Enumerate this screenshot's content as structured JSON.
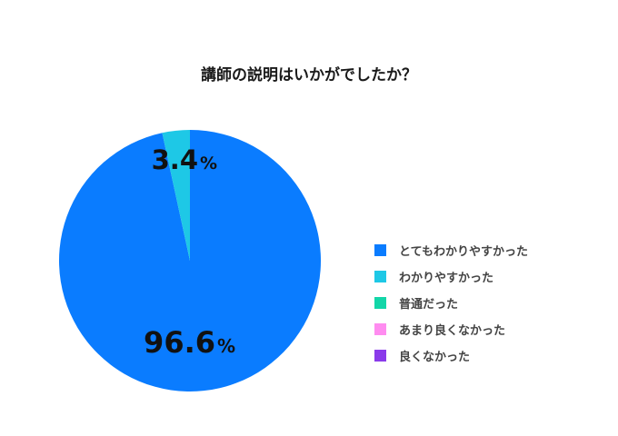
{
  "chart_data": {
    "type": "pie",
    "title": "講師の説明はいかがでしたか？",
    "categories": [
      "とてもわかりやすかった",
      "わかりやすかった",
      "普通だった",
      "あまり良くなかった",
      "良くなかった"
    ],
    "values": [
      96.6,
      3.4,
      0,
      0,
      0
    ],
    "colors": [
      "#0a7cff",
      "#1ec8e6",
      "#13d6a8",
      "#ff8cf0",
      "#8a3bea"
    ],
    "data_labels": [
      {
        "num": "96.6",
        "unit": "%"
      },
      {
        "num": "3.4",
        "unit": "%"
      }
    ],
    "legend_position": "right"
  }
}
